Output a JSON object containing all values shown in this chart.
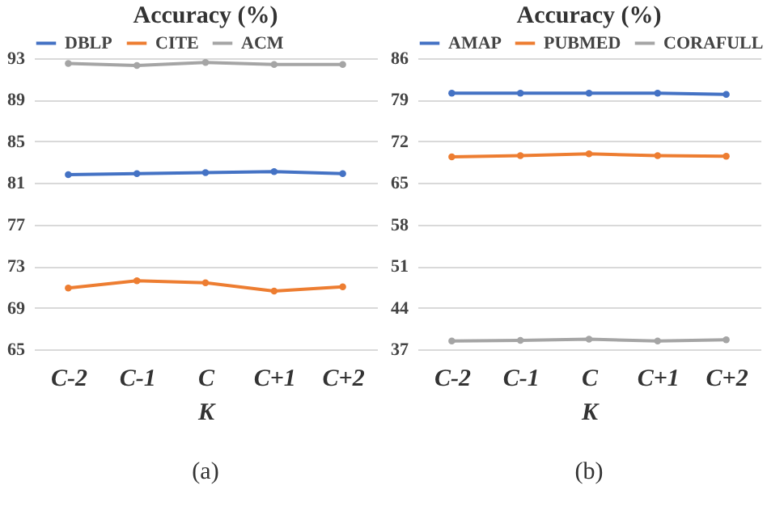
{
  "chart_data": [
    {
      "type": "line",
      "title": "Accuracy (%)",
      "xlabel": "K",
      "categories": [
        "C-2",
        "C-1",
        "C",
        "C+1",
        "C+2"
      ],
      "series": [
        {
          "name": "DBLP",
          "color": "#4472c4",
          "values": [
            81.8,
            81.9,
            82.0,
            82.1,
            81.9
          ]
        },
        {
          "name": "CITE",
          "color": "#ed7d31",
          "values": [
            70.9,
            71.6,
            71.4,
            70.6,
            71.0
          ]
        },
        {
          "name": "ACM",
          "color": "#a5a5a5",
          "values": [
            92.5,
            92.3,
            92.6,
            92.4,
            92.4
          ]
        }
      ],
      "ylim": [
        65,
        93
      ],
      "yticks": [
        65,
        69,
        73,
        77,
        81,
        85,
        89,
        93
      ],
      "grid": "y",
      "legend": "top",
      "marker": "circle",
      "line_style": "solid",
      "annotations": [
        "(a)"
      ]
    },
    {
      "type": "line",
      "title": "Accuracy (%)",
      "xlabel": "K",
      "categories": [
        "C-2",
        "C-1",
        "C",
        "C+1",
        "C+2"
      ],
      "series": [
        {
          "name": "AMAP",
          "color": "#4472c4",
          "values": [
            80.1,
            80.1,
            80.1,
            80.1,
            79.9
          ]
        },
        {
          "name": "PUBMED",
          "color": "#ed7d31",
          "values": [
            69.4,
            69.6,
            69.9,
            69.6,
            69.5
          ]
        },
        {
          "name": "CORAFULL",
          "color": "#a5a5a5",
          "values": [
            38.4,
            38.5,
            38.7,
            38.4,
            38.6
          ]
        }
      ],
      "ylim": [
        37,
        86
      ],
      "yticks": [
        37,
        44,
        51,
        58,
        65,
        72,
        79,
        86
      ],
      "grid": "y",
      "legend": "top",
      "marker": "circle",
      "line_style": "solid",
      "annotations": [
        "(b)"
      ]
    }
  ]
}
